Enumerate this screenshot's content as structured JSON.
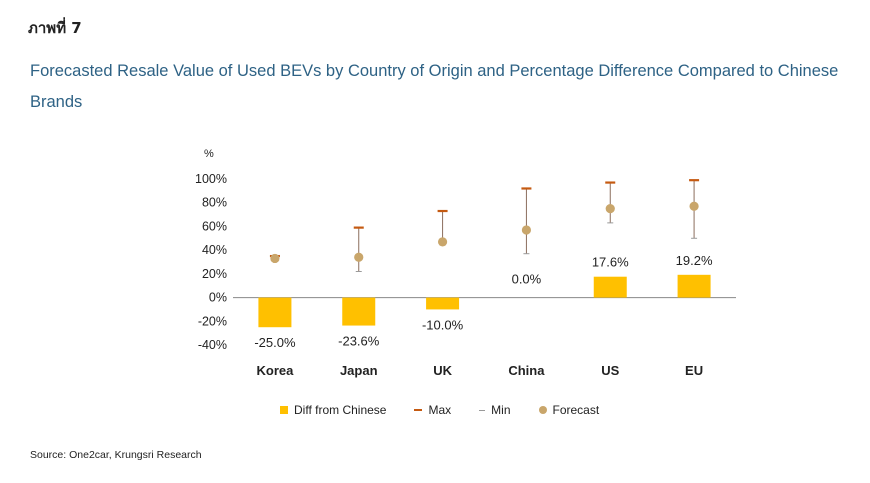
{
  "figure_label": "ภาพที่ 7",
  "title": "Forecasted Resale Value of Used BEVs by Country of Origin and Percentage Difference Compared to Chinese Brands",
  "source": "Source: One2car, Krungsri Research",
  "colors": {
    "bar": "#ffc000",
    "max": "#c55a11",
    "min": "#999999",
    "forecast": "#c9a66b",
    "whisker": "#8b6d5c",
    "title": "#2e6285"
  },
  "chart_data": {
    "type": "bar",
    "unit": "%",
    "categories": [
      "Korea",
      "Japan",
      "UK",
      "China",
      "US",
      "EU"
    ],
    "ylim": [
      -40,
      100
    ],
    "yticks": [
      -40,
      -20,
      0,
      20,
      40,
      60,
      80,
      100
    ],
    "ytick_labels": [
      "-40%",
      "-20%",
      "0%",
      "20%",
      "40%",
      "60%",
      "80%",
      "100%"
    ],
    "series": [
      {
        "name": "Diff from Chinese",
        "kind": "bar",
        "values": [
          -25.0,
          -23.6,
          -10.0,
          0.0,
          17.6,
          19.2
        ],
        "labels": [
          "-25.0%",
          "-23.6%",
          "-10.0%",
          "0.0%",
          "17.6%",
          "19.2%"
        ]
      },
      {
        "name": "Max",
        "kind": "marker",
        "values": [
          35,
          59,
          73,
          92,
          97,
          99
        ]
      },
      {
        "name": "Min",
        "kind": "marker",
        "values": [
          32,
          22,
          48,
          37,
          63,
          50
        ]
      },
      {
        "name": "Forecast",
        "kind": "marker",
        "values": [
          33,
          34,
          47,
          57,
          75,
          77
        ]
      }
    ],
    "legend_position": "bottom"
  }
}
